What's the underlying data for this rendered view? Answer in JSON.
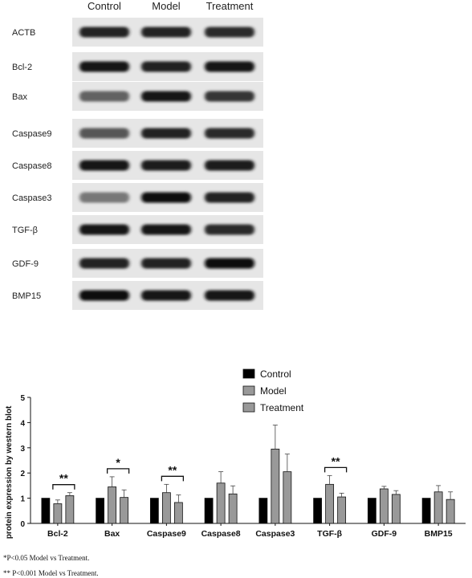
{
  "blot": {
    "lane_labels": [
      "Control",
      "Model",
      "Treatment"
    ],
    "rows": [
      {
        "label": "ACTB",
        "intensity": [
          0.85,
          0.85,
          0.8
        ]
      },
      {
        "label": "Bcl-2",
        "intensity": [
          0.9,
          0.85,
          0.9
        ]
      },
      {
        "label": "Bax",
        "intensity": [
          0.55,
          0.9,
          0.75
        ]
      },
      {
        "label": "Caspase9",
        "intensity": [
          0.6,
          0.85,
          0.8
        ]
      },
      {
        "label": "Caspase8",
        "intensity": [
          0.9,
          0.88,
          0.88
        ]
      },
      {
        "label": "Caspase3",
        "intensity": [
          0.45,
          0.95,
          0.85
        ]
      },
      {
        "label": "TGF-β",
        "intensity": [
          0.9,
          0.9,
          0.8
        ]
      },
      {
        "label": "GDF-9",
        "intensity": [
          0.85,
          0.85,
          0.95
        ]
      },
      {
        "label": "BMP15",
        "intensity": [
          0.95,
          0.9,
          0.9
        ]
      }
    ]
  },
  "chart_data": {
    "type": "bar",
    "title": "",
    "xlabel": "",
    "ylabel": "protein expression by western blot",
    "ylim": [
      0,
      5
    ],
    "yticks": [
      0,
      1,
      2,
      3,
      4,
      5
    ],
    "legend_position": "top-right",
    "categories": [
      "Bcl-2",
      "Bax",
      "Caspase9",
      "Caspase8",
      "Caspase3",
      "TGF-β",
      "GDF-9",
      "BMP15"
    ],
    "series": [
      {
        "name": "Control",
        "color": "#000000",
        "values": [
          1,
          1,
          1,
          1,
          1,
          1,
          1,
          1
        ],
        "errors": [
          0,
          0,
          0,
          0,
          0,
          0,
          0,
          0
        ]
      },
      {
        "name": "Model",
        "color": "#999999",
        "values": [
          0.78,
          1.45,
          1.22,
          1.6,
          2.95,
          1.55,
          1.37,
          1.25
        ],
        "errors": [
          0.15,
          0.4,
          0.33,
          0.45,
          0.95,
          0.35,
          0.1,
          0.25
        ]
      },
      {
        "name": "Treatment",
        "color": "#999999",
        "values": [
          1.1,
          1.03,
          0.83,
          1.17,
          2.05,
          1.05,
          1.15,
          0.95
        ],
        "errors": [
          0.12,
          0.3,
          0.3,
          0.32,
          0.7,
          0.15,
          0.15,
          0.3
        ]
      }
    ],
    "significance": [
      {
        "category_index": 0,
        "label": "**"
      },
      {
        "category_index": 1,
        "label": "*"
      },
      {
        "category_index": 2,
        "label": "**"
      },
      {
        "category_index": 5,
        "label": "**"
      }
    ]
  },
  "footnotes": [
    "*P<0.05 Model vs Treatment.",
    "** P<0.001 Model vs Treatment."
  ]
}
